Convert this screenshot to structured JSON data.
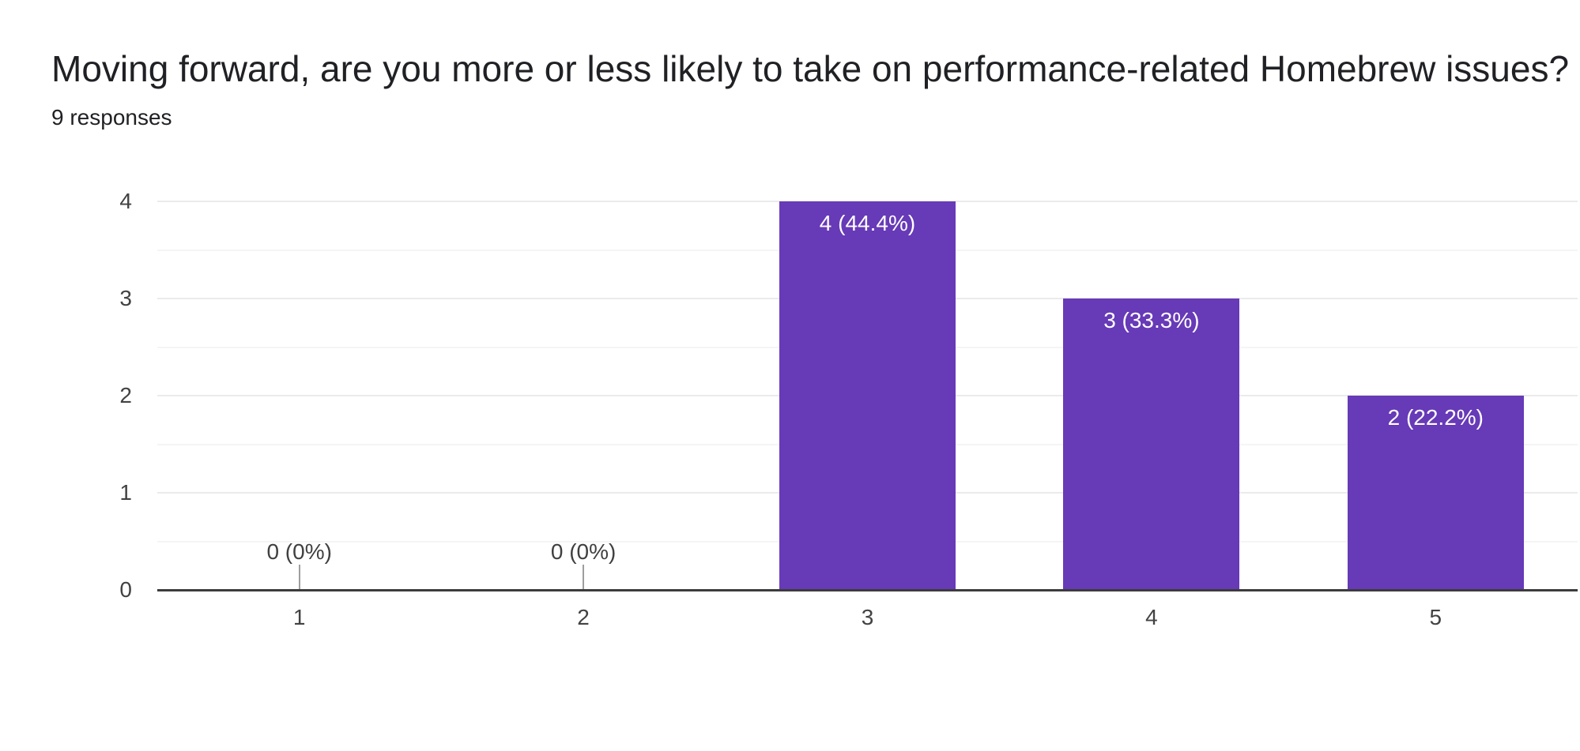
{
  "header": {
    "title": "Moving forward, are you more or less likely to take on performance-related Homebrew issues?",
    "subtitle": "9 responses"
  },
  "chart_data": {
    "type": "bar",
    "title": "Moving forward, are you more or less likely to take on performance-related Homebrew issues?",
    "subtitle": "9 responses",
    "total_responses": 9,
    "categories": [
      "1",
      "2",
      "3",
      "4",
      "5"
    ],
    "values": [
      0,
      0,
      4,
      3,
      2
    ],
    "bar_labels": [
      "0 (0%)",
      "0 (0%)",
      "4 (44.4%)",
      "3 (33.3%)",
      "2 (22.2%)"
    ],
    "xlabel": "",
    "ylabel": "",
    "ylim": [
      0,
      4
    ],
    "yticks": [
      0,
      1,
      2,
      3,
      4
    ],
    "minor_grid_step": 0.5,
    "grid": true,
    "legend_position": "none",
    "colors": {
      "bar": "#673ab7",
      "bar_label_inside": "#ffffff",
      "bar_label_zero": "#404040",
      "axis_text": "#424242",
      "title_text": "#202124",
      "gridline_major": "#ebebeb",
      "gridline_minor": "#f5f5f5",
      "baseline": "#3c3c3c",
      "zero_tick": "#9e9e9e",
      "background": "#ffffff"
    }
  }
}
